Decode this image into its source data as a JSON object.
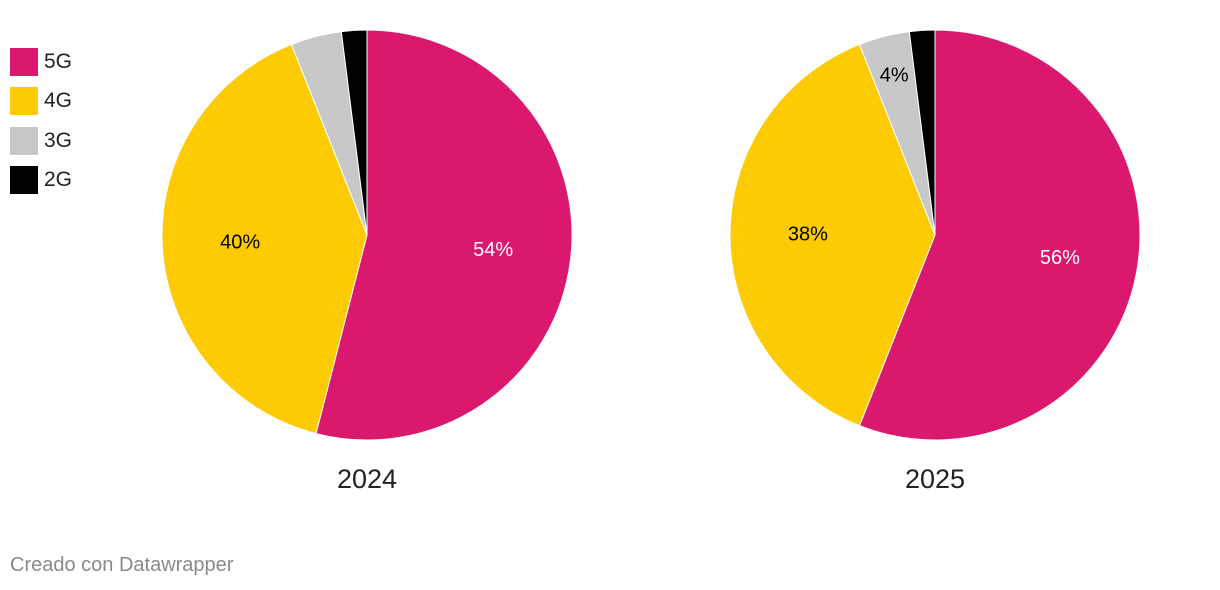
{
  "chart_data": {
    "type": "pie",
    "legend": [
      {
        "label": "5G",
        "color": "#d9186e"
      },
      {
        "label": "4G",
        "color": "#fdcb04"
      },
      {
        "label": "3G",
        "color": "#c8c8c8"
      },
      {
        "label": "2G",
        "color": "#000000"
      }
    ],
    "charts": [
      {
        "title": "2024",
        "slices": [
          {
            "name": "5G",
            "value": 54,
            "label": "54%",
            "color": "#d9186e",
            "label_color": "#ffffff"
          },
          {
            "name": "4G",
            "value": 40,
            "label": "40%",
            "color": "#fdcb04",
            "label_color": "#000000"
          },
          {
            "name": "3G",
            "value": 4,
            "label": "",
            "color": "#c8c8c8",
            "label_color": "#000000"
          },
          {
            "name": "2G",
            "value": 2,
            "label": "",
            "color": "#000000",
            "label_color": "#ffffff"
          }
        ]
      },
      {
        "title": "2025",
        "slices": [
          {
            "name": "5G",
            "value": 56,
            "label": "56%",
            "color": "#d9186e",
            "label_color": "#ffffff"
          },
          {
            "name": "4G",
            "value": 38,
            "label": "38%",
            "color": "#fdcb04",
            "label_color": "#000000"
          },
          {
            "name": "3G",
            "value": 4,
            "label": "4%",
            "color": "#c8c8c8",
            "label_color": "#000000"
          },
          {
            "name": "2G",
            "value": 2,
            "label": "",
            "color": "#000000",
            "label_color": "#ffffff"
          }
        ]
      }
    ]
  },
  "footer": {
    "credit": "Creado con Datawrapper"
  }
}
